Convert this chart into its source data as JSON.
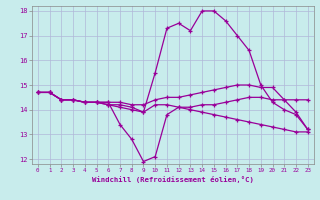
{
  "title": "",
  "xlabel": "Windchill (Refroidissement éolien,°C)",
  "ylabel": "",
  "bg_color": "#c8ecec",
  "line_color": "#990099",
  "grid_color": "#b0b8d8",
  "xlim": [
    -0.5,
    23.5
  ],
  "ylim": [
    11.8,
    18.2
  ],
  "yticks": [
    12,
    13,
    14,
    15,
    16,
    17,
    18
  ],
  "xticks": [
    0,
    1,
    2,
    3,
    4,
    5,
    6,
    7,
    8,
    9,
    10,
    11,
    12,
    13,
    14,
    15,
    16,
    17,
    18,
    19,
    20,
    21,
    22,
    23
  ],
  "series": [
    {
      "x": [
        0,
        1,
        2,
        3,
        4,
        5,
        6,
        7,
        8,
        9,
        10,
        11,
        12,
        13,
        14,
        15,
        16,
        17,
        18,
        19,
        20,
        21,
        22,
        23
      ],
      "y": [
        14.7,
        14.7,
        14.4,
        14.4,
        14.3,
        14.3,
        14.2,
        14.2,
        14.1,
        13.9,
        15.5,
        17.3,
        17.5,
        17.2,
        18.0,
        18.0,
        17.6,
        17.0,
        16.4,
        15.0,
        14.3,
        14.0,
        13.8,
        13.2
      ]
    },
    {
      "x": [
        0,
        1,
        2,
        3,
        4,
        5,
        6,
        7,
        8,
        9,
        10,
        11,
        12,
        13,
        14,
        15,
        16,
        17,
        18,
        19,
        20,
        21,
        22,
        23
      ],
      "y": [
        14.7,
        14.7,
        14.4,
        14.4,
        14.3,
        14.3,
        14.3,
        14.3,
        14.2,
        14.2,
        14.4,
        14.5,
        14.5,
        14.6,
        14.7,
        14.8,
        14.9,
        15.0,
        15.0,
        14.9,
        14.9,
        14.4,
        14.4,
        14.4
      ]
    },
    {
      "x": [
        0,
        1,
        2,
        3,
        4,
        5,
        6,
        7,
        8,
        9,
        10,
        11,
        12,
        13,
        14,
        15,
        16,
        17,
        18,
        19,
        20,
        21,
        22,
        23
      ],
      "y": [
        14.7,
        14.7,
        14.4,
        14.4,
        14.3,
        14.3,
        14.2,
        14.1,
        14.0,
        13.9,
        14.2,
        14.2,
        14.1,
        14.0,
        13.9,
        13.8,
        13.7,
        13.6,
        13.5,
        13.4,
        13.3,
        13.2,
        13.1,
        13.1
      ]
    },
    {
      "x": [
        0,
        1,
        2,
        3,
        4,
        5,
        6,
        7,
        8,
        9,
        10,
        11,
        12,
        13,
        14,
        15,
        16,
        17,
        18,
        19,
        20,
        21,
        22,
        23
      ],
      "y": [
        14.7,
        14.7,
        14.4,
        14.4,
        14.3,
        14.3,
        14.3,
        13.4,
        12.8,
        11.9,
        12.1,
        13.8,
        14.1,
        14.1,
        14.2,
        14.2,
        14.3,
        14.4,
        14.5,
        14.5,
        14.4,
        14.4,
        13.9,
        13.2
      ]
    }
  ]
}
